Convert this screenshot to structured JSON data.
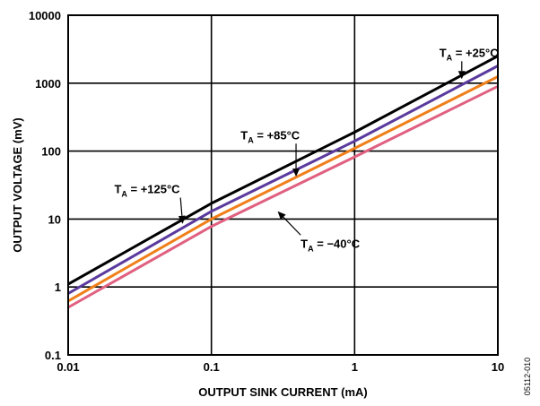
{
  "chart_data": {
    "type": "line",
    "xlabel": "OUTPUT SINK CURRENT (mA)",
    "ylabel": "OUTPUT VOLTAGE (mV)",
    "xscale": "log",
    "yscale": "log",
    "xlim": [
      0.01,
      10
    ],
    "ylim": [
      0.1,
      10000
    ],
    "grid": true,
    "x_ticks": [
      0.01,
      0.1,
      1,
      10
    ],
    "x_tick_labels": [
      "0.01",
      "0.1",
      "1",
      "10"
    ],
    "y_ticks": [
      0.1,
      1,
      10,
      100,
      1000,
      10000
    ],
    "y_tick_labels": [
      "0.1",
      "1",
      "10",
      "100",
      "1000",
      "10000"
    ],
    "figure_id": "05112-010",
    "series": [
      {
        "name": "TA = +125°C",
        "color": "#000000",
        "x": [
          0.01,
          0.1,
          1,
          10
        ],
        "y": [
          1.1,
          17,
          190,
          2500
        ]
      },
      {
        "name": "TA = +85°C",
        "color": "#5b3a9e",
        "x": [
          0.01,
          0.1,
          1,
          10
        ],
        "y": [
          0.8,
          13,
          140,
          1800
        ]
      },
      {
        "name": "TA = +25°C",
        "color": "#f07f1a",
        "x": [
          0.01,
          0.1,
          1,
          10
        ],
        "y": [
          0.62,
          10,
          110,
          1250
        ]
      },
      {
        "name": "TA = −40°C",
        "color": "#e06080",
        "x": [
          0.01,
          0.1,
          1,
          10
        ],
        "y": [
          0.5,
          7.8,
          82,
          900
        ]
      }
    ],
    "annotations": [
      {
        "main": "T",
        "sub": "A",
        "rest": " = +25°C",
        "x": 3.9,
        "y": 2450,
        "arrow_to_x": 5.6,
        "arrow_to_y": 1150
      },
      {
        "main": "T",
        "sub": "A",
        "rest": " = +85°C",
        "x": 0.16,
        "y": 150,
        "arrow_to_x": 0.39,
        "arrow_to_y": 42
      },
      {
        "main": "T",
        "sub": "A",
        "rest": " = +125°C",
        "x": 0.021,
        "y": 24,
        "arrow_to_x": 0.063,
        "arrow_to_y": 8.5
      },
      {
        "main": "T",
        "sub": "A",
        "rest": " = −40°C",
        "x": 0.42,
        "y": 3.8,
        "arrow_to_x": 0.29,
        "arrow_to_y": 13
      }
    ]
  }
}
